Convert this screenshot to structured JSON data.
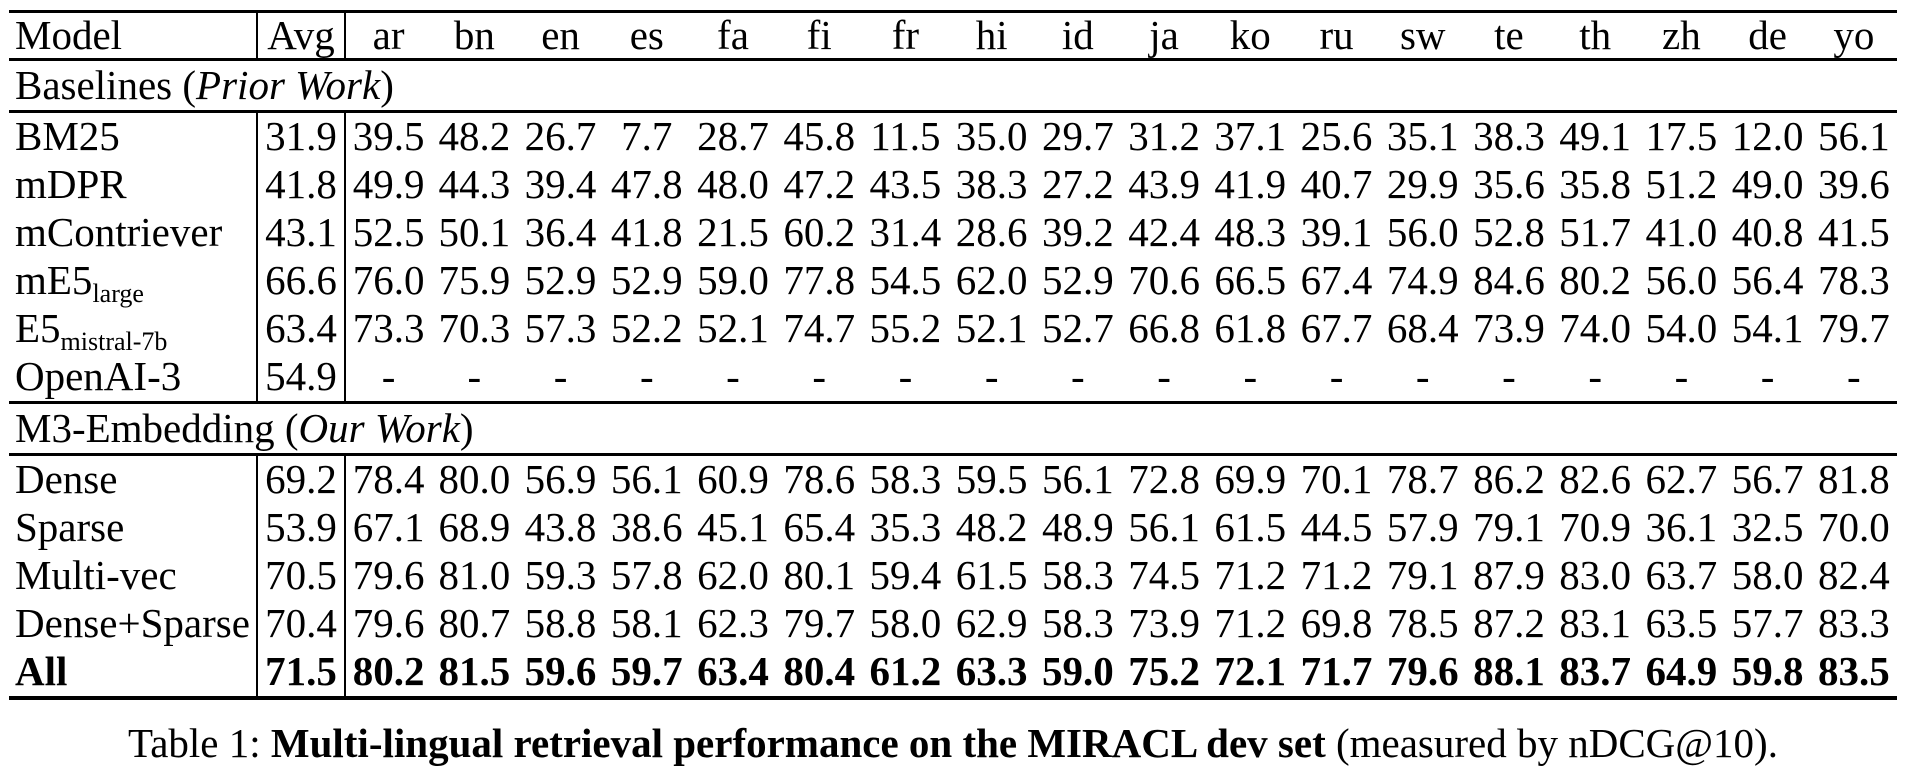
{
  "colors": {
    "text": "#000000",
    "background": "#ffffff",
    "rule": "#000000"
  },
  "chart_data": {
    "type": "table",
    "title": "Multi-lingual retrieval performance on the MIRACL dev set (measured by nDCG@10)",
    "columns": [
      "Model",
      "Avg",
      "ar",
      "bn",
      "en",
      "es",
      "fa",
      "fi",
      "fr",
      "hi",
      "id",
      "ja",
      "ko",
      "ru",
      "sw",
      "te",
      "th",
      "zh",
      "de",
      "yo"
    ]
  },
  "table": {
    "columns": [
      "Model",
      "Avg",
      "ar",
      "bn",
      "en",
      "es",
      "fa",
      "fi",
      "fr",
      "hi",
      "id",
      "ja",
      "ko",
      "ru",
      "sw",
      "te",
      "th",
      "zh",
      "de",
      "yo"
    ],
    "sections": [
      {
        "header": {
          "prefix": "Baselines (",
          "italic": "Prior Work",
          "suffix": ")"
        },
        "rows": [
          {
            "model": "BM25",
            "sub": "",
            "avg": "31.9",
            "bold": false,
            "values": [
              "39.5",
              "48.2",
              "26.7",
              "7.7",
              "28.7",
              "45.8",
              "11.5",
              "35.0",
              "29.7",
              "31.2",
              "37.1",
              "25.6",
              "35.1",
              "38.3",
              "49.1",
              "17.5",
              "12.0",
              "56.1"
            ]
          },
          {
            "model": "mDPR",
            "sub": "",
            "avg": "41.8",
            "bold": false,
            "values": [
              "49.9",
              "44.3",
              "39.4",
              "47.8",
              "48.0",
              "47.2",
              "43.5",
              "38.3",
              "27.2",
              "43.9",
              "41.9",
              "40.7",
              "29.9",
              "35.6",
              "35.8",
              "51.2",
              "49.0",
              "39.6"
            ]
          },
          {
            "model": "mContriever",
            "sub": "",
            "avg": "43.1",
            "bold": false,
            "values": [
              "52.5",
              "50.1",
              "36.4",
              "41.8",
              "21.5",
              "60.2",
              "31.4",
              "28.6",
              "39.2",
              "42.4",
              "48.3",
              "39.1",
              "56.0",
              "52.8",
              "51.7",
              "41.0",
              "40.8",
              "41.5"
            ]
          },
          {
            "model": "mE5",
            "sub": "large",
            "avg": "66.6",
            "bold": false,
            "values": [
              "76.0",
              "75.9",
              "52.9",
              "52.9",
              "59.0",
              "77.8",
              "54.5",
              "62.0",
              "52.9",
              "70.6",
              "66.5",
              "67.4",
              "74.9",
              "84.6",
              "80.2",
              "56.0",
              "56.4",
              "78.3"
            ]
          },
          {
            "model": "E5",
            "sub": "mistral-7b",
            "avg": "63.4",
            "bold": false,
            "values": [
              "73.3",
              "70.3",
              "57.3",
              "52.2",
              "52.1",
              "74.7",
              "55.2",
              "52.1",
              "52.7",
              "66.8",
              "61.8",
              "67.7",
              "68.4",
              "73.9",
              "74.0",
              "54.0",
              "54.1",
              "79.7"
            ]
          },
          {
            "model": "OpenAI-3",
            "sub": "",
            "avg": "54.9",
            "bold": false,
            "values": [
              "-",
              "-",
              "-",
              "-",
              "-",
              "-",
              "-",
              "-",
              "-",
              "-",
              "-",
              "-",
              "-",
              "-",
              "-",
              "-",
              "-",
              "-"
            ]
          }
        ]
      },
      {
        "header": {
          "prefix": "M3-Embedding (",
          "italic": "Our Work",
          "suffix": ")"
        },
        "rows": [
          {
            "model": "Dense",
            "sub": "",
            "avg": "69.2",
            "bold": false,
            "values": [
              "78.4",
              "80.0",
              "56.9",
              "56.1",
              "60.9",
              "78.6",
              "58.3",
              "59.5",
              "56.1",
              "72.8",
              "69.9",
              "70.1",
              "78.7",
              "86.2",
              "82.6",
              "62.7",
              "56.7",
              "81.8"
            ]
          },
          {
            "model": "Sparse",
            "sub": "",
            "avg": "53.9",
            "bold": false,
            "values": [
              "67.1",
              "68.9",
              "43.8",
              "38.6",
              "45.1",
              "65.4",
              "35.3",
              "48.2",
              "48.9",
              "56.1",
              "61.5",
              "44.5",
              "57.9",
              "79.1",
              "70.9",
              "36.1",
              "32.5",
              "70.0"
            ]
          },
          {
            "model": "Multi-vec",
            "sub": "",
            "avg": "70.5",
            "bold": false,
            "values": [
              "79.6",
              "81.0",
              "59.3",
              "57.8",
              "62.0",
              "80.1",
              "59.4",
              "61.5",
              "58.3",
              "74.5",
              "71.2",
              "71.2",
              "79.1",
              "87.9",
              "83.0",
              "63.7",
              "58.0",
              "82.4"
            ]
          },
          {
            "model": "Dense+Sparse",
            "sub": "",
            "avg": "70.4",
            "bold": false,
            "values": [
              "79.6",
              "80.7",
              "58.8",
              "58.1",
              "62.3",
              "79.7",
              "58.0",
              "62.9",
              "58.3",
              "73.9",
              "71.2",
              "69.8",
              "78.5",
              "87.2",
              "83.1",
              "63.5",
              "57.7",
              "83.3"
            ]
          },
          {
            "model": "All",
            "sub": "",
            "avg": "71.5",
            "bold": true,
            "values": [
              "80.2",
              "81.5",
              "59.6",
              "59.7",
              "63.4",
              "80.4",
              "61.2",
              "63.3",
              "59.0",
              "75.2",
              "72.1",
              "71.7",
              "79.6",
              "88.1",
              "83.7",
              "64.9",
              "59.8",
              "83.5"
            ]
          }
        ]
      }
    ]
  },
  "caption": {
    "prefix": "Table 1: ",
    "bold": "Multi-lingual retrieval performance on the MIRACL dev set",
    "suffix": " (measured by nDCG@10)."
  }
}
